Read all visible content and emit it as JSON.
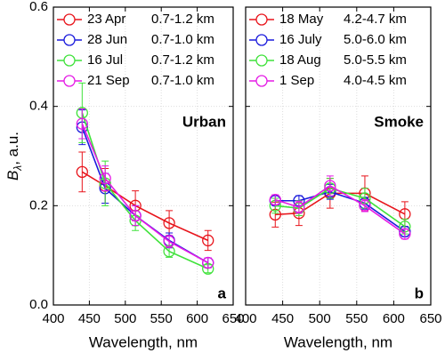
{
  "chart_data": [
    {
      "type": "line",
      "xlabel": "Wavelength, nm",
      "ylabel": {
        "main": "B",
        "sub": "λ",
        "rest": ", a.u."
      },
      "annotation": "Urban",
      "panel_label": "a",
      "x": [
        440,
        472,
        514,
        561,
        615
      ],
      "xlim": [
        400,
        650
      ],
      "xticks": [
        400,
        450,
        500,
        550,
        600,
        650
      ],
      "ylim": [
        0,
        0.6
      ],
      "yticks": [
        {
          "value": 0,
          "label": "0.0"
        },
        0.2,
        0.4,
        0.6
      ],
      "show_ytick_labels": true,
      "grid": true,
      "legend": "upper left",
      "series": [
        {
          "name": "23 Apr",
          "range": "0.7-1.2 km",
          "color": "#e8141b",
          "values": [
            0.268,
            0.24,
            0.2,
            0.165,
            0.13
          ],
          "errors": [
            0.04,
            0.035,
            0.03,
            0.025,
            0.02
          ]
        },
        {
          "name": "28 Jun",
          "range": "0.7-1.0 km",
          "color": "#1a1adc",
          "values": [
            0.358,
            0.235,
            0.18,
            0.13,
            0.085
          ],
          "errors": [
            0.035,
            0.03,
            0.02,
            0.015,
            0.01
          ]
        },
        {
          "name": "16 Jul",
          "range": "0.7-1.2 km",
          "color": "#3fe23a",
          "values": [
            0.387,
            0.245,
            0.17,
            0.108,
            0.073
          ],
          "errors": [
            0.06,
            0.045,
            0.02,
            0.012,
            0.008
          ]
        },
        {
          "name": "21 Sep",
          "range": "0.7-1.0 km",
          "color": "#e51ae5",
          "values": [
            0.365,
            0.255,
            0.18,
            0.128,
            0.085
          ],
          "errors": [
            0.03,
            0.025,
            0.02,
            0.012,
            0.01
          ]
        }
      ]
    },
    {
      "type": "line",
      "xlabel": "Wavelength, nm",
      "annotation": "Smoke",
      "panel_label": "b",
      "x": [
        440,
        472,
        514,
        561,
        615
      ],
      "xlim": [
        400,
        650
      ],
      "xticks": [
        400,
        450,
        500,
        550,
        600,
        650
      ],
      "ylim": [
        0,
        0.6
      ],
      "yticks": [
        0,
        0.2,
        0.4,
        0.6
      ],
      "show_ytick_labels": false,
      "grid": true,
      "legend": "upper left",
      "series": [
        {
          "name": "18 May",
          "range": "4.2-4.7 km",
          "color": "#e8141b",
          "values": [
            0.182,
            0.185,
            0.225,
            0.225,
            0.183
          ],
          "errors": [
            0.025,
            0.025,
            0.03,
            0.035,
            0.025
          ]
        },
        {
          "name": "16 July",
          "range": "5.0-6.0 km",
          "color": "#1a1adc",
          "values": [
            0.21,
            0.21,
            0.228,
            0.205,
            0.148
          ],
          "errors": [
            0.01,
            0.01,
            0.015,
            0.012,
            0.01
          ]
        },
        {
          "name": "18 Aug",
          "range": "5.0-5.5 km",
          "color": "#3fe23a",
          "values": [
            0.2,
            0.195,
            0.235,
            0.215,
            0.158
          ],
          "errors": [
            0.015,
            0.015,
            0.02,
            0.02,
            0.015
          ]
        },
        {
          "name": "1 Sep",
          "range": "4.0-4.5 km",
          "color": "#e51ae5",
          "values": [
            0.212,
            0.197,
            0.24,
            0.2,
            0.143
          ],
          "errors": [
            0.01,
            0.012,
            0.02,
            0.012,
            0.01
          ]
        }
      ]
    }
  ]
}
